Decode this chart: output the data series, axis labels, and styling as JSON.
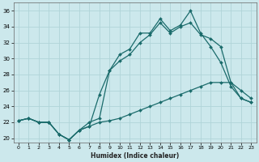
{
  "xlabel": "Humidex (Indice chaleur)",
  "bg_color": "#cce8ec",
  "grid_color": "#b0d4d8",
  "line_color": "#1a6b6b",
  "xlim": [
    -0.5,
    23.5
  ],
  "ylim": [
    19.5,
    37
  ],
  "yticks": [
    20,
    22,
    24,
    26,
    28,
    30,
    32,
    34,
    36
  ],
  "xticks": [
    0,
    1,
    2,
    3,
    4,
    5,
    6,
    7,
    8,
    9,
    10,
    11,
    12,
    13,
    14,
    15,
    16,
    17,
    18,
    19,
    20,
    21,
    22,
    23
  ],
  "line1_x": [
    0,
    1,
    2,
    3,
    4,
    5,
    6,
    7,
    8,
    9,
    10,
    11,
    12,
    13,
    14,
    15,
    16,
    17,
    18,
    19,
    20,
    21,
    22,
    23
  ],
  "line1_y": [
    22.2,
    22.5,
    22.0,
    22.0,
    20.5,
    19.8,
    21.0,
    21.5,
    22.0,
    22.2,
    22.5,
    23.0,
    23.5,
    24.0,
    24.5,
    25.0,
    25.5,
    26.0,
    26.5,
    27.0,
    27.0,
    27.0,
    25.0,
    24.5
  ],
  "line2_x": [
    0,
    1,
    2,
    3,
    4,
    5,
    6,
    7,
    8,
    9,
    10,
    11,
    12,
    13,
    14,
    15,
    16,
    17,
    18,
    19,
    20,
    21,
    22,
    23
  ],
  "line2_y": [
    22.2,
    22.5,
    22.0,
    22.0,
    20.5,
    19.8,
    21.0,
    21.5,
    25.5,
    28.5,
    29.7,
    30.5,
    32.0,
    33.0,
    34.5,
    33.2,
    34.0,
    34.5,
    33.0,
    32.5,
    31.5,
    27.0,
    26.0,
    25.0
  ],
  "line3_x": [
    0,
    1,
    2,
    3,
    4,
    5,
    6,
    7,
    8,
    9,
    10,
    11,
    12,
    13,
    14,
    15,
    16,
    17,
    18,
    19,
    20,
    21,
    22,
    23
  ],
  "line3_y": [
    22.2,
    22.5,
    22.0,
    22.0,
    20.5,
    19.8,
    21.0,
    22.0,
    22.5,
    28.5,
    30.5,
    31.2,
    33.2,
    33.2,
    35.0,
    33.5,
    34.2,
    36.0,
    33.2,
    31.5,
    29.5,
    26.5,
    25.0,
    24.5
  ]
}
